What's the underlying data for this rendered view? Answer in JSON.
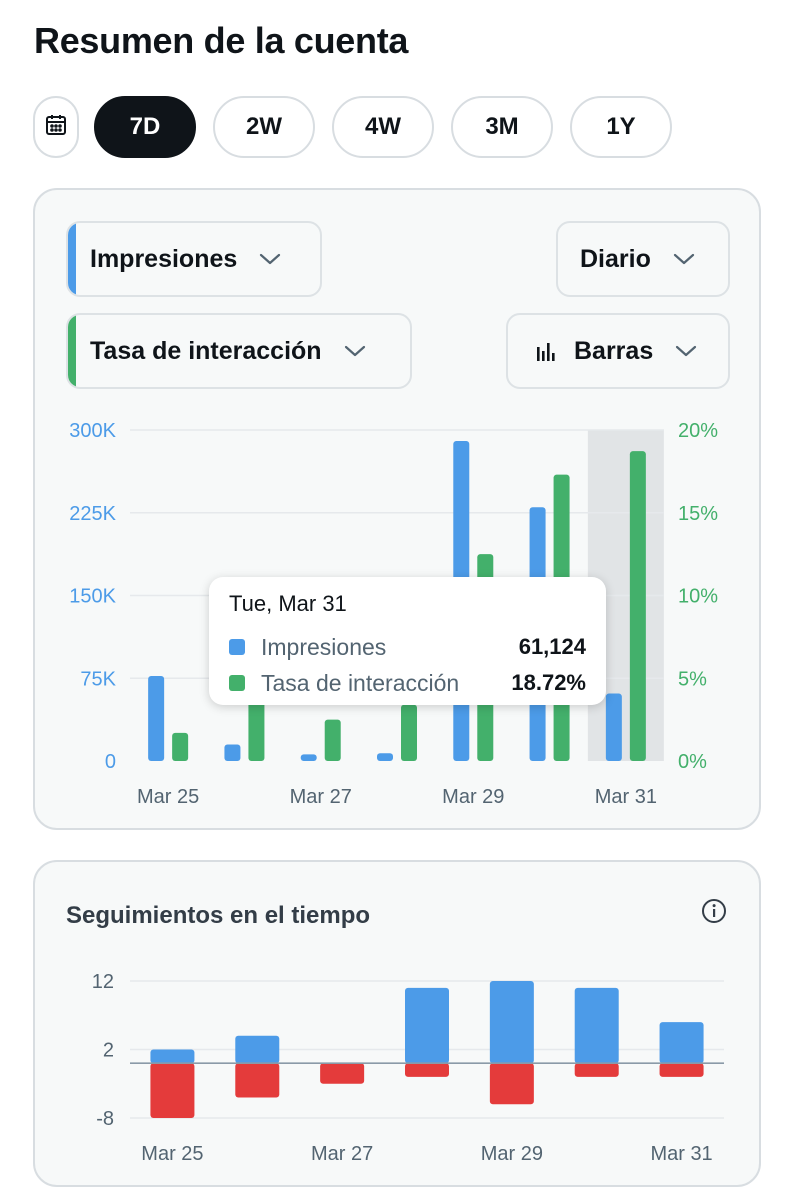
{
  "page": {
    "title": "Resumen de la cuenta"
  },
  "range": {
    "calendar_icon": "calendar-icon",
    "options": [
      "7D",
      "2W",
      "4W",
      "3M",
      "1Y"
    ],
    "selected": "7D"
  },
  "controls": {
    "metric1": {
      "label": "Impresiones",
      "color": "#4c9be8"
    },
    "metric2": {
      "label": "Tasa de interacción",
      "color": "#43b06b"
    },
    "interval": {
      "label": "Diario"
    },
    "chart_type": {
      "label": "Barras",
      "icon": "bar-chart-icon"
    }
  },
  "tooltip": {
    "date": "Tue, Mar 31",
    "rows": [
      {
        "label": "Impresiones",
        "value": "61,124",
        "color": "#4c9be8"
      },
      {
        "label": "Tasa de interacción",
        "value": "18.72%",
        "color": "#43b06b"
      }
    ]
  },
  "follows": {
    "title": "Seguimientos en el tiempo",
    "info_icon": "info-icon"
  },
  "chart_data": [
    {
      "type": "bar",
      "categories": [
        "Mar 25",
        "Mar 26",
        "Mar 27",
        "Mar 28",
        "Mar 29",
        "Mar 30",
        "Mar 31"
      ],
      "x_tick_labels": [
        "Mar 25",
        "Mar 27",
        "Mar 29",
        "Mar 31"
      ],
      "series": [
        {
          "name": "Impresiones",
          "axis": "left",
          "color": "#4c9be8",
          "values": [
            77000,
            15000,
            6000,
            7000,
            290000,
            230000,
            61124
          ]
        },
        {
          "name": "Tasa de interacción",
          "axis": "right",
          "color": "#43b06b",
          "values": [
            1.7,
            3.8,
            2.5,
            3.4,
            12.5,
            17.3,
            18.72
          ]
        }
      ],
      "y_left": {
        "ylim": [
          0,
          300000
        ],
        "ticks": [
          0,
          75000,
          150000,
          225000,
          300000
        ],
        "tick_labels": [
          "0",
          "75K",
          "150K",
          "225K",
          "300K"
        ]
      },
      "y_right": {
        "ylim": [
          0,
          20
        ],
        "ticks": [
          0,
          5,
          10,
          15,
          20
        ],
        "tick_labels": [
          "0%",
          "5%",
          "10%",
          "15%",
          "20%"
        ]
      },
      "highlighted": "Mar 31",
      "grid": true
    },
    {
      "type": "bar",
      "stacked": true,
      "categories": [
        "Mar 25",
        "Mar 26",
        "Mar 27",
        "Mar 28",
        "Mar 29",
        "Mar 30",
        "Mar 31"
      ],
      "x_tick_labels": [
        "Mar 25",
        "Mar 27",
        "Mar 29",
        "Mar 31"
      ],
      "series": [
        {
          "name": "",
          "color": "#4c9be8",
          "values": [
            2,
            4,
            0,
            11,
            12,
            11,
            6
          ]
        },
        {
          "name": "",
          "color": "#e43b3b",
          "values": [
            -8,
            -5,
            -3,
            -2,
            -6,
            -2,
            -2
          ]
        }
      ],
      "ylim": [
        -8,
        12
      ],
      "y_ticks": [
        12,
        2,
        -8
      ],
      "grid": true
    }
  ]
}
